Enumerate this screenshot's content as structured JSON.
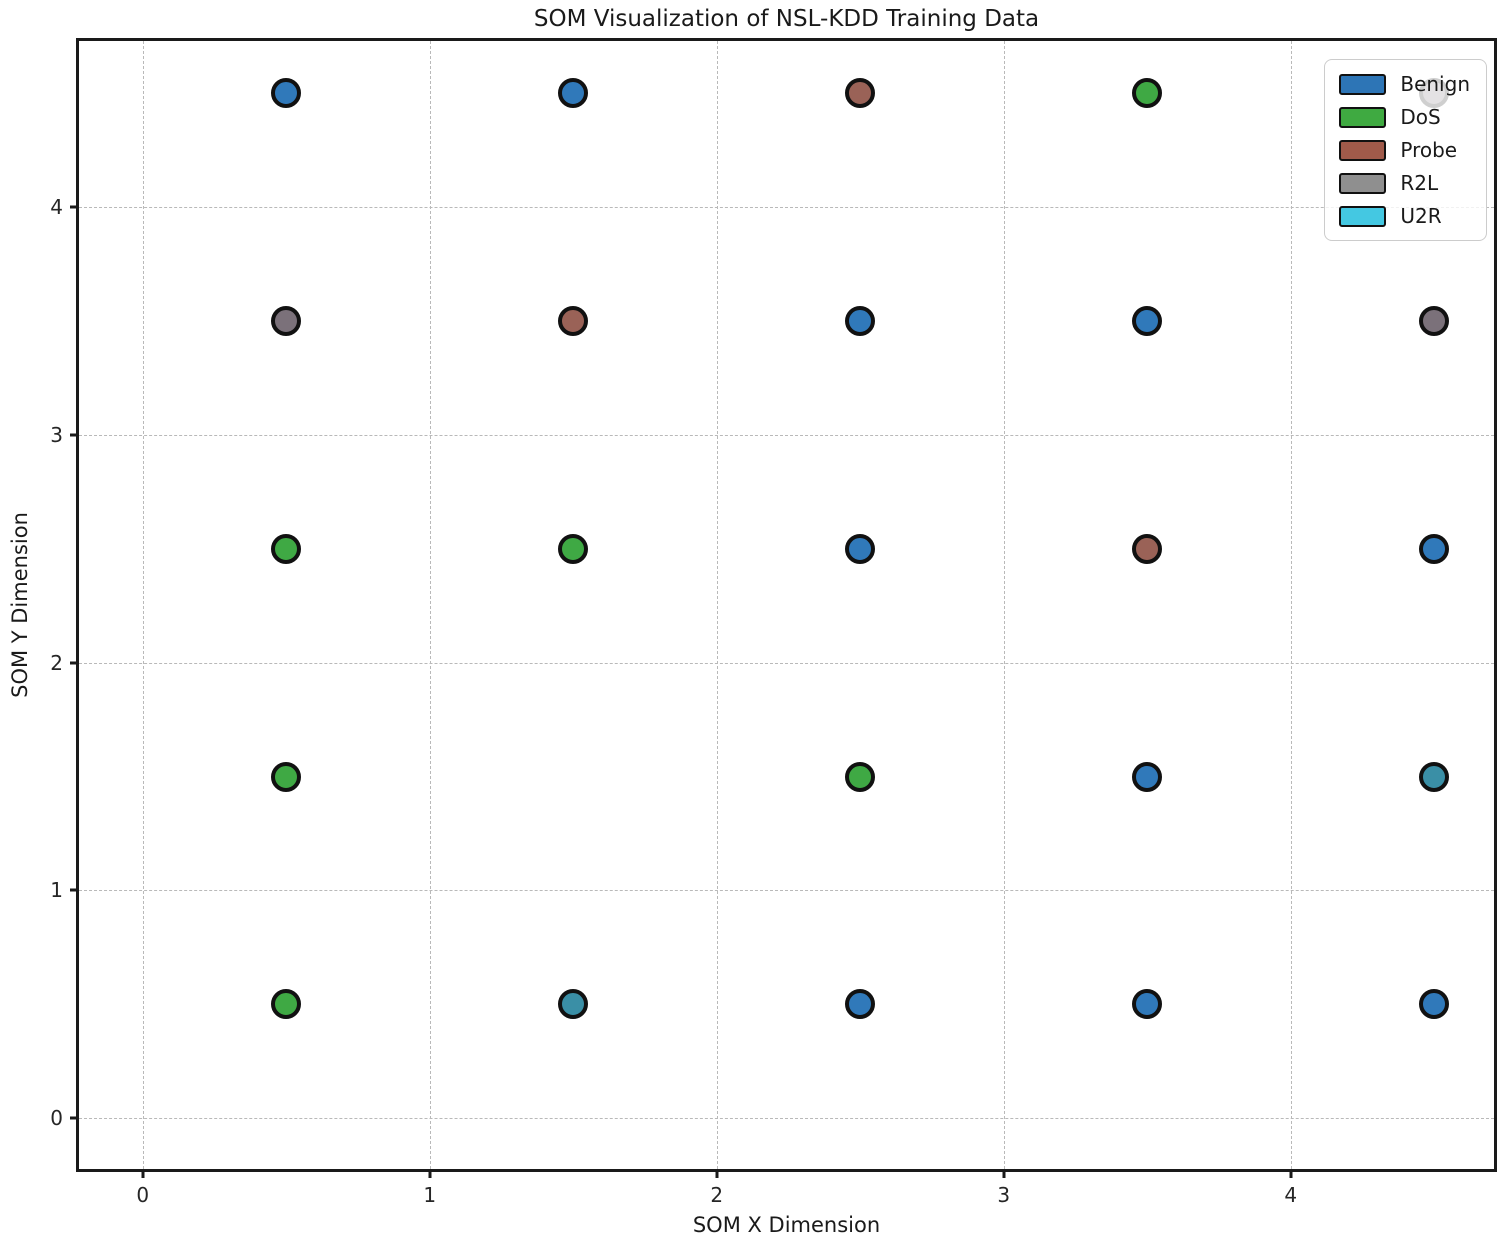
{
  "chart_data": {
    "type": "scatter",
    "title": "SOM Visualization of NSL-KDD Training Data",
    "xlabel": "SOM X Dimension",
    "ylabel": "SOM Y Dimension",
    "xlim": [
      -0.222,
      4.708
    ],
    "ylim": [
      -0.223,
      4.729
    ],
    "xticks": [
      0,
      1,
      2,
      3,
      4
    ],
    "yticks": [
      0,
      1,
      2,
      3,
      4
    ],
    "grid": true,
    "grid_style": "dashed",
    "legend_position": "upper right",
    "edge_color": "#111111",
    "classes": [
      {
        "name": "Benign",
        "legend_color": "#2d75b6",
        "point_color": "#3079ba"
      },
      {
        "name": "DoS",
        "legend_color": "#3faa41",
        "point_color": "#3fa944"
      },
      {
        "name": "Probe",
        "legend_color": "#a05a4a",
        "point_color": "#9a6257"
      },
      {
        "name": "R2L",
        "legend_color": "#8f8f8f",
        "point_color": "#7b717a"
      },
      {
        "name": "U2R",
        "legend_color": "#44c8e2",
        "point_color": "#3a8fa6"
      }
    ],
    "points": [
      {
        "x": 0.5,
        "y": 4.5,
        "label": "Benign"
      },
      {
        "x": 1.5,
        "y": 4.5,
        "label": "Benign"
      },
      {
        "x": 2.5,
        "y": 4.5,
        "label": "Probe"
      },
      {
        "x": 3.5,
        "y": 4.5,
        "label": "DoS"
      },
      {
        "x": 4.5,
        "y": 4.5,
        "label": "R2L",
        "behind_legend": true
      },
      {
        "x": 0.5,
        "y": 3.5,
        "label": "R2L"
      },
      {
        "x": 1.5,
        "y": 3.5,
        "label": "Probe"
      },
      {
        "x": 2.5,
        "y": 3.5,
        "label": "Benign"
      },
      {
        "x": 3.5,
        "y": 3.5,
        "label": "Benign"
      },
      {
        "x": 4.5,
        "y": 3.5,
        "label": "R2L"
      },
      {
        "x": 0.5,
        "y": 2.5,
        "label": "DoS"
      },
      {
        "x": 1.5,
        "y": 2.5,
        "label": "DoS"
      },
      {
        "x": 2.5,
        "y": 2.5,
        "label": "Benign"
      },
      {
        "x": 3.5,
        "y": 2.5,
        "label": "Probe"
      },
      {
        "x": 4.5,
        "y": 2.5,
        "label": "Benign"
      },
      {
        "x": 0.5,
        "y": 1.5,
        "label": "DoS"
      },
      {
        "x": 2.5,
        "y": 1.5,
        "label": "DoS"
      },
      {
        "x": 3.5,
        "y": 1.5,
        "label": "Benign"
      },
      {
        "x": 4.5,
        "y": 1.5,
        "label": "U2R"
      },
      {
        "x": 0.5,
        "y": 0.5,
        "label": "DoS"
      },
      {
        "x": 1.5,
        "y": 0.5,
        "label": "U2R"
      },
      {
        "x": 2.5,
        "y": 0.5,
        "label": "Benign"
      },
      {
        "x": 3.5,
        "y": 0.5,
        "label": "Benign"
      },
      {
        "x": 4.5,
        "y": 0.5,
        "label": "Benign"
      }
    ]
  }
}
